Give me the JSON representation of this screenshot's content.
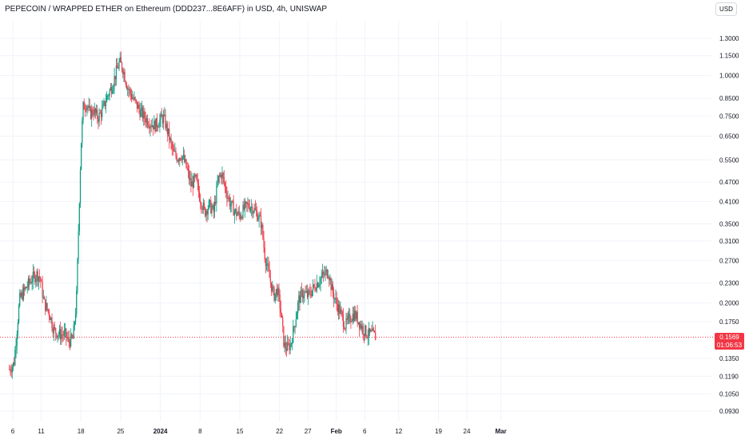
{
  "header": {
    "title": "PEPECOIN / WRAPPED ETHER on Ethereum (DDD237...8E6AFF) in USD, 4h, UNISWAP",
    "currency_label": "USD"
  },
  "last_price": {
    "value": "0.1569",
    "countdown": "01:06:53"
  },
  "colors": {
    "up": "#089981",
    "down": "#f23645",
    "grid": "#f0f3fa",
    "price_line": "#f23645"
  },
  "chart_data": {
    "type": "candlestick",
    "scale": "log",
    "yticks": [
      {
        "label": "1.3000",
        "value": 1.3
      },
      {
        "label": "1.1500",
        "value": 1.15
      },
      {
        "label": "1.0000",
        "value": 1.0
      },
      {
        "label": "0.8500",
        "value": 0.85
      },
      {
        "label": "0.7500",
        "value": 0.75
      },
      {
        "label": "0.6500",
        "value": 0.65
      },
      {
        "label": "0.5500",
        "value": 0.55
      },
      {
        "label": "0.4700",
        "value": 0.47
      },
      {
        "label": "0.4100",
        "value": 0.41
      },
      {
        "label": "0.3500",
        "value": 0.35
      },
      {
        "label": "0.3100",
        "value": 0.31
      },
      {
        "label": "0.2700",
        "value": 0.27
      },
      {
        "label": "0.2300",
        "value": 0.23
      },
      {
        "label": "0.2000",
        "value": 0.2
      },
      {
        "label": "0.1750",
        "value": 0.175
      },
      {
        "label": "0.1350",
        "value": 0.135
      },
      {
        "label": "0.1190",
        "value": 0.119
      },
      {
        "label": "0.1050",
        "value": 0.105
      },
      {
        "label": "0.0930",
        "value": 0.093
      }
    ],
    "xticks": [
      {
        "label": "6",
        "day": 6,
        "bold": false
      },
      {
        "label": "11",
        "day": 11,
        "bold": false
      },
      {
        "label": "18",
        "day": 18,
        "bold": false
      },
      {
        "label": "25",
        "day": 25,
        "bold": false
      },
      {
        "label": "2024",
        "day": 32,
        "bold": true
      },
      {
        "label": "8",
        "day": 39,
        "bold": false
      },
      {
        "label": "15",
        "day": 46,
        "bold": false
      },
      {
        "label": "22",
        "day": 53,
        "bold": false
      },
      {
        "label": "27",
        "day": 58,
        "bold": false
      },
      {
        "label": "Feb",
        "day": 63,
        "bold": true
      },
      {
        "label": "6",
        "day": 68,
        "bold": false
      },
      {
        "label": "12",
        "day": 74,
        "bold": false
      },
      {
        "label": "19",
        "day": 81,
        "bold": false
      },
      {
        "label": "24",
        "day": 86,
        "bold": false
      },
      {
        "label": "Mar",
        "day": 92,
        "bold": true
      }
    ],
    "x_unit": "days since Dec 1 2023",
    "price_path": [
      [
        5.4,
        0.125
      ],
      [
        6.2,
        0.13
      ],
      [
        7.2,
        0.205
      ],
      [
        8.2,
        0.22
      ],
      [
        9.2,
        0.235
      ],
      [
        10.2,
        0.245
      ],
      [
        10.8,
        0.24
      ],
      [
        11.5,
        0.2
      ],
      [
        12.5,
        0.185
      ],
      [
        13.2,
        0.165
      ],
      [
        14.2,
        0.16
      ],
      [
        15.2,
        0.16
      ],
      [
        15.8,
        0.152
      ],
      [
        16.6,
        0.155
      ],
      [
        17.2,
        0.2
      ],
      [
        17.6,
        0.35
      ],
      [
        18.0,
        0.6
      ],
      [
        18.4,
        0.8
      ],
      [
        19.0,
        0.82
      ],
      [
        19.6,
        0.76
      ],
      [
        20.2,
        0.78
      ],
      [
        21.0,
        0.74
      ],
      [
        21.8,
        0.78
      ],
      [
        22.6,
        0.86
      ],
      [
        23.4,
        0.92
      ],
      [
        24.2,
        1.02
      ],
      [
        24.8,
        1.1
      ],
      [
        25.4,
        1.05
      ],
      [
        26.2,
        0.92
      ],
      [
        27.0,
        0.86
      ],
      [
        28.0,
        0.8
      ],
      [
        29.0,
        0.75
      ],
      [
        30.0,
        0.72
      ],
      [
        31.0,
        0.7
      ],
      [
        32.0,
        0.73
      ],
      [
        32.6,
        0.74
      ],
      [
        33.4,
        0.66
      ],
      [
        34.2,
        0.58
      ],
      [
        35.0,
        0.56
      ],
      [
        35.8,
        0.57
      ],
      [
        36.6,
        0.52
      ],
      [
        37.4,
        0.46
      ],
      [
        38.2,
        0.48
      ],
      [
        39.0,
        0.42
      ],
      [
        39.8,
        0.38
      ],
      [
        40.6,
        0.4
      ],
      [
        41.4,
        0.38
      ],
      [
        42.2,
        0.48
      ],
      [
        42.8,
        0.5
      ],
      [
        43.6,
        0.44
      ],
      [
        44.4,
        0.4
      ],
      [
        45.2,
        0.38
      ],
      [
        46.0,
        0.37
      ],
      [
        46.8,
        0.39
      ],
      [
        47.6,
        0.4
      ],
      [
        48.4,
        0.39
      ],
      [
        49.2,
        0.37
      ],
      [
        49.8,
        0.35
      ],
      [
        50.4,
        0.28
      ],
      [
        51.2,
        0.24
      ],
      [
        52.0,
        0.21
      ],
      [
        52.6,
        0.22
      ],
      [
        53.2,
        0.19
      ],
      [
        53.8,
        0.148
      ],
      [
        54.4,
        0.145
      ],
      [
        55.0,
        0.15
      ],
      [
        55.6,
        0.17
      ],
      [
        56.4,
        0.205
      ],
      [
        57.2,
        0.215
      ],
      [
        58.0,
        0.21
      ],
      [
        58.8,
        0.22
      ],
      [
        59.6,
        0.23
      ],
      [
        60.4,
        0.24
      ],
      [
        61.0,
        0.245
      ],
      [
        61.6,
        0.25
      ],
      [
        62.2,
        0.22
      ],
      [
        63.0,
        0.2
      ],
      [
        63.8,
        0.185
      ],
      [
        64.6,
        0.17
      ],
      [
        65.4,
        0.18
      ],
      [
        66.2,
        0.185
      ],
      [
        67.0,
        0.175
      ],
      [
        67.8,
        0.165
      ],
      [
        68.6,
        0.16
      ],
      [
        69.4,
        0.16
      ],
      [
        70.0,
        0.1569
      ]
    ]
  }
}
